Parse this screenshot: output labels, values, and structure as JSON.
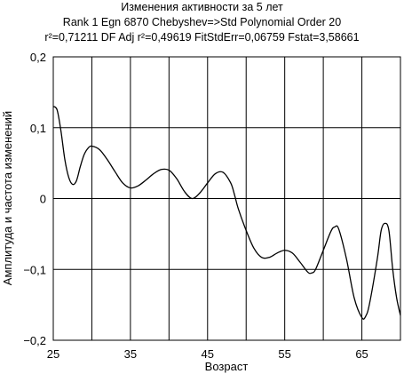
{
  "chart_data": {
    "type": "line",
    "title": "Изменения активности за 5 лет",
    "subtitle_1": "Rank 1 Egn 6870 Chebyshev=>Std Polynomial Order 20",
    "subtitle_2": "r²=0,71211 DF Adj r²=0,49619 FitStdErr=0,06759 Fstat=3,58661",
    "xlabel": "Возраст",
    "ylabel": "Амплитуда и частота изменений",
    "xlim": [
      25,
      70
    ],
    "ylim": [
      -0.2,
      0.2
    ],
    "x_ticks": [
      25,
      30,
      35,
      40,
      45,
      50,
      55,
      60,
      65,
      70
    ],
    "x_tick_labels": [
      "25",
      "35",
      "45",
      "55",
      "65"
    ],
    "x_tick_label_values": [
      25,
      35,
      45,
      55,
      65
    ],
    "y_ticks": [
      0.2,
      0.1,
      0,
      -0.1,
      -0.2
    ],
    "y_tick_labels": [
      "0,2",
      "0,1",
      "0",
      "−0,1",
      "−0,2"
    ],
    "grid": true,
    "series": [
      {
        "color": "#000000",
        "x": [
          25,
          25.5,
          26,
          26.5,
          27,
          27.5,
          28,
          28.5,
          29,
          29.5,
          30,
          31,
          32,
          33,
          34,
          35,
          36,
          37,
          38,
          39,
          40,
          41,
          42,
          43,
          44,
          45,
          46,
          47,
          48,
          48.5,
          49,
          50,
          51,
          52,
          53,
          54,
          55,
          56,
          57,
          58,
          58.5,
          59,
          60,
          61,
          61.5,
          62,
          63,
          64,
          65,
          65.5,
          66,
          67,
          67.5,
          68,
          68.5,
          69,
          69.5,
          70
        ],
        "y": [
          0.13,
          0.125,
          0.095,
          0.055,
          0.03,
          0.02,
          0.025,
          0.045,
          0.062,
          0.071,
          0.074,
          0.069,
          0.055,
          0.038,
          0.022,
          0.015,
          0.018,
          0.026,
          0.035,
          0.041,
          0.04,
          0.028,
          0.01,
          0.0,
          0.008,
          0.022,
          0.035,
          0.037,
          0.022,
          0.005,
          -0.015,
          -0.045,
          -0.07,
          -0.083,
          -0.083,
          -0.077,
          -0.073,
          -0.077,
          -0.09,
          -0.104,
          -0.105,
          -0.1,
          -0.073,
          -0.046,
          -0.04,
          -0.043,
          -0.085,
          -0.14,
          -0.168,
          -0.166,
          -0.148,
          -0.085,
          -0.045,
          -0.035,
          -0.045,
          -0.1,
          -0.14,
          -0.165
        ]
      }
    ]
  }
}
